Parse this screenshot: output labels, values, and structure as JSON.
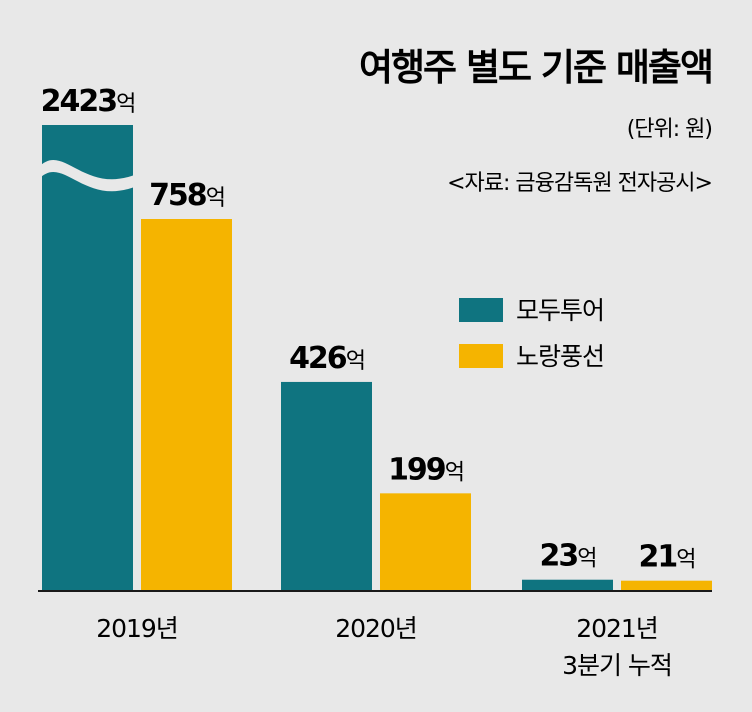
{
  "chart_data": {
    "type": "bar",
    "title": "여행주 별도 기준 매출액",
    "unit_note": "(단위: 원)",
    "source": "<자료: 금융감독원 전자공시>",
    "categories": [
      [
        "2019년"
      ],
      [
        "2020년"
      ],
      [
        "2021년",
        "3분기 누적"
      ]
    ],
    "value_suffix": "억",
    "series": [
      {
        "name": "모두투어",
        "color": "#0f7480",
        "values": [
          2423,
          426,
          23
        ]
      },
      {
        "name": "노랑풍선",
        "color": "#f5b400",
        "values": [
          758,
          199,
          21
        ]
      }
    ],
    "axis_break": true,
    "legend_position": "center-right",
    "grid": false
  }
}
